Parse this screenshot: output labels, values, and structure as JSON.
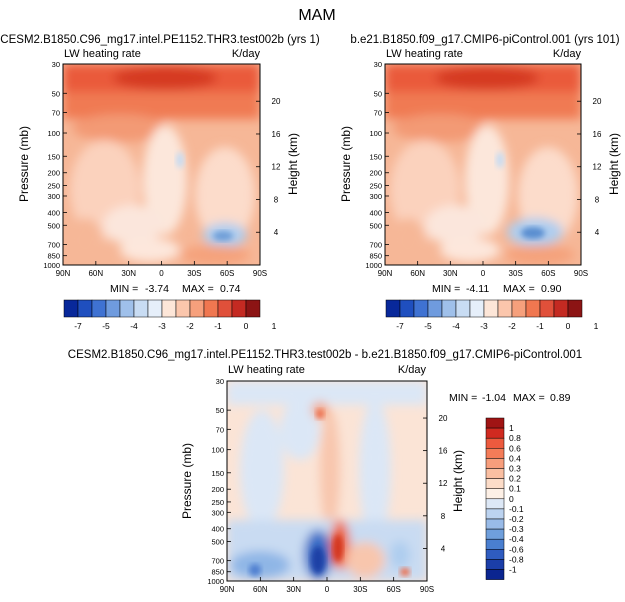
{
  "figure": {
    "title": "MAM",
    "variable": "LW heating rate",
    "units": "K/day"
  },
  "chart_data": [
    {
      "type": "heatmap",
      "subtype": "latitude-pressure filled contour",
      "title": "CESM2.B1850.C96_mg17.intel.PE1152.THR3.test002b (yrs 1)",
      "left_string": "LW heating rate",
      "right_string": "K/day",
      "xlabel": "",
      "ylabel": "Pressure (mb)",
      "ylabel_right": "Height (km)",
      "x_ticks": [
        "90N",
        "60N",
        "30N",
        "0",
        "30S",
        "60S",
        "90S"
      ],
      "y_ticks": [
        "30",
        "50",
        "70",
        "100",
        "150",
        "200",
        "250",
        "300",
        "400",
        "500",
        "700",
        "850",
        "1000"
      ],
      "height_ticks": [
        "20",
        "16",
        "12",
        "8",
        "4"
      ],
      "min_label": "MIN =",
      "min_value": "-3.74",
      "max_label": "MAX =",
      "max_value": "0.74",
      "colorbar_levels": [
        "-7",
        "-5",
        "-4",
        "-3",
        "-2",
        "-1",
        "0",
        "1"
      ]
    },
    {
      "type": "heatmap",
      "subtype": "latitude-pressure filled contour",
      "title": "b.e21.B1850.f09_g17.CMIP6-piControl.001 (yrs 101)",
      "left_string": "LW heating rate",
      "right_string": "K/day",
      "xlabel": "",
      "ylabel": "Pressure (mb)",
      "ylabel_right": "Height (km)",
      "x_ticks": [
        "90N",
        "60N",
        "30N",
        "0",
        "30S",
        "60S",
        "90S"
      ],
      "y_ticks": [
        "30",
        "50",
        "70",
        "100",
        "150",
        "200",
        "250",
        "300",
        "400",
        "500",
        "700",
        "850",
        "1000"
      ],
      "height_ticks": [
        "20",
        "16",
        "12",
        "8",
        "4"
      ],
      "min_label": "MIN =",
      "min_value": "-4.11",
      "max_label": "MAX =",
      "max_value": "0.90",
      "colorbar_levels": [
        "-7",
        "-5",
        "-4",
        "-3",
        "-2",
        "-1",
        "0",
        "1"
      ]
    },
    {
      "type": "heatmap",
      "subtype": "latitude-pressure filled contour (difference)",
      "title": "CESM2.B1850.C96_mg17.intel.PE1152.THR3.test002b - b.e21.B1850.f09_g17.CMIP6-piControl.001",
      "left_string": "LW heating rate",
      "right_string": "K/day",
      "xlabel": "",
      "ylabel": "Pressure (mb)",
      "ylabel_right": "Height (km)",
      "x_ticks": [
        "90N",
        "60N",
        "30N",
        "0",
        "30S",
        "60S",
        "90S"
      ],
      "y_ticks": [
        "30",
        "50",
        "70",
        "100",
        "150",
        "200",
        "250",
        "300",
        "400",
        "500",
        "700",
        "850",
        "1000"
      ],
      "height_ticks": [
        "20",
        "16",
        "12",
        "8",
        "4"
      ],
      "min_label": "MIN =",
      "min_value": "-1.04",
      "max_label": "MAX =",
      "max_value": "0.89",
      "colorbar_levels": [
        "1",
        "0.8",
        "0.6",
        "0.4",
        "0.3",
        "0.2",
        "0.1",
        "0",
        "-0.1",
        "-0.2",
        "-0.3",
        "-0.4",
        "-0.6",
        "-0.8",
        "-1"
      ]
    }
  ],
  "colors": {
    "frame": "#000000",
    "background": "#ffffff"
  }
}
